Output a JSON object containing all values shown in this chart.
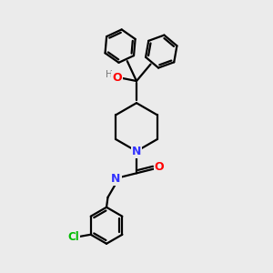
{
  "bg_color": "#ebebeb",
  "atom_colors": {
    "C": "#000000",
    "N": "#3333ff",
    "O": "#ff0000",
    "Cl": "#00bb00",
    "H": "#888888"
  },
  "bond_color": "#000000",
  "bond_width": 1.6
}
